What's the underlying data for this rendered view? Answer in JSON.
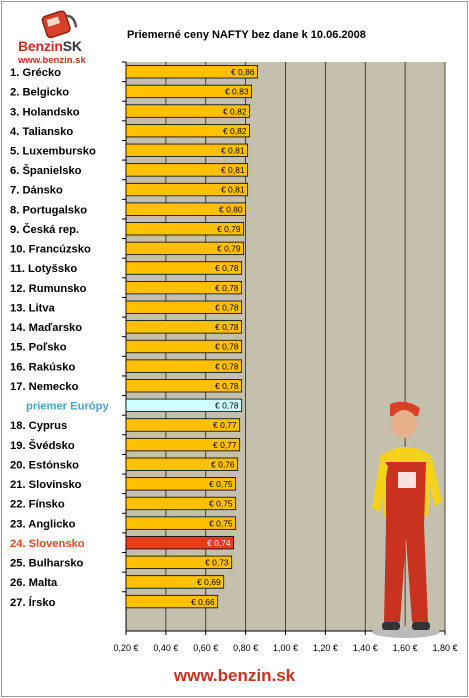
{
  "title": "Priemerné ceny NAFTY bez dane k 10.06.2008",
  "logo": {
    "word_a": "Benzin",
    "word_b": "SK",
    "url": "www.benzin.sk"
  },
  "footer": "www.benzin.sk",
  "colors": {
    "bar": "#ffc000",
    "highlight_bar": "#ee3a1c",
    "average_bar": "#ccffff",
    "highlight_label": "#e84a1c",
    "average_label": "#4aa3cf",
    "plot_bg": "#c5bfae"
  },
  "chart_data": {
    "type": "bar",
    "orientation": "horizontal",
    "title": "Priemerné ceny NAFTY bez dane k 10.06.2008",
    "xlim": [
      0.2,
      1.8
    ],
    "x_ticks": [
      "0,20 €",
      "0,40 €",
      "0,60 €",
      "0,80 €",
      "1,00 €",
      "1,20 €",
      "1,40 €",
      "1,60 €",
      "1,80 €"
    ],
    "grid": true,
    "categories": [
      "1. Grécko",
      "2. Belgicko",
      "3. Holandsko",
      "4. Taliansko",
      "5. Luxembursko",
      "6. Španielsko",
      "7. Dánsko",
      "8. Portugalsko",
      "9. Česká rep.",
      "10. Francúzsko",
      "11. Lotyšsko",
      "12. Rumunsko",
      "13. Litva",
      "14. Maďarsko",
      "15. Poľsko",
      "16. Rakúsko",
      "17. Nemecko",
      "priemer Európy",
      "18. Cyprus",
      "19. Švédsko",
      "20. Estónsko",
      "21. Slovinsko",
      "22. Fínsko",
      "23. Anglicko",
      "24. Slovensko",
      "25. Bulharsko",
      "26. Malta",
      "27. Írsko"
    ],
    "values": [
      0.86,
      0.83,
      0.82,
      0.82,
      0.81,
      0.81,
      0.81,
      0.8,
      0.79,
      0.79,
      0.78,
      0.78,
      0.78,
      0.78,
      0.78,
      0.78,
      0.78,
      0.78,
      0.77,
      0.77,
      0.76,
      0.75,
      0.75,
      0.75,
      0.74,
      0.73,
      0.69,
      0.66
    ],
    "value_labels": [
      "€ 0,86",
      "€ 0,83",
      "€ 0,82",
      "€ 0,82",
      "€ 0,81",
      "€ 0,81",
      "€ 0,81",
      "€ 0,80",
      "€ 0,79",
      "€ 0,79",
      "€ 0,78",
      "€ 0,78",
      "€ 0,78",
      "€ 0,78",
      "€ 0,78",
      "€ 0,78",
      "€ 0,78",
      "€ 0,78",
      "€ 0,77",
      "€ 0,77",
      "€ 0,76",
      "€ 0,75",
      "€ 0,75",
      "€ 0,75",
      "€ 0,74",
      "€ 0,73",
      "€ 0,69",
      "€ 0,66"
    ],
    "average_index": 17,
    "highlight_index": 24
  }
}
